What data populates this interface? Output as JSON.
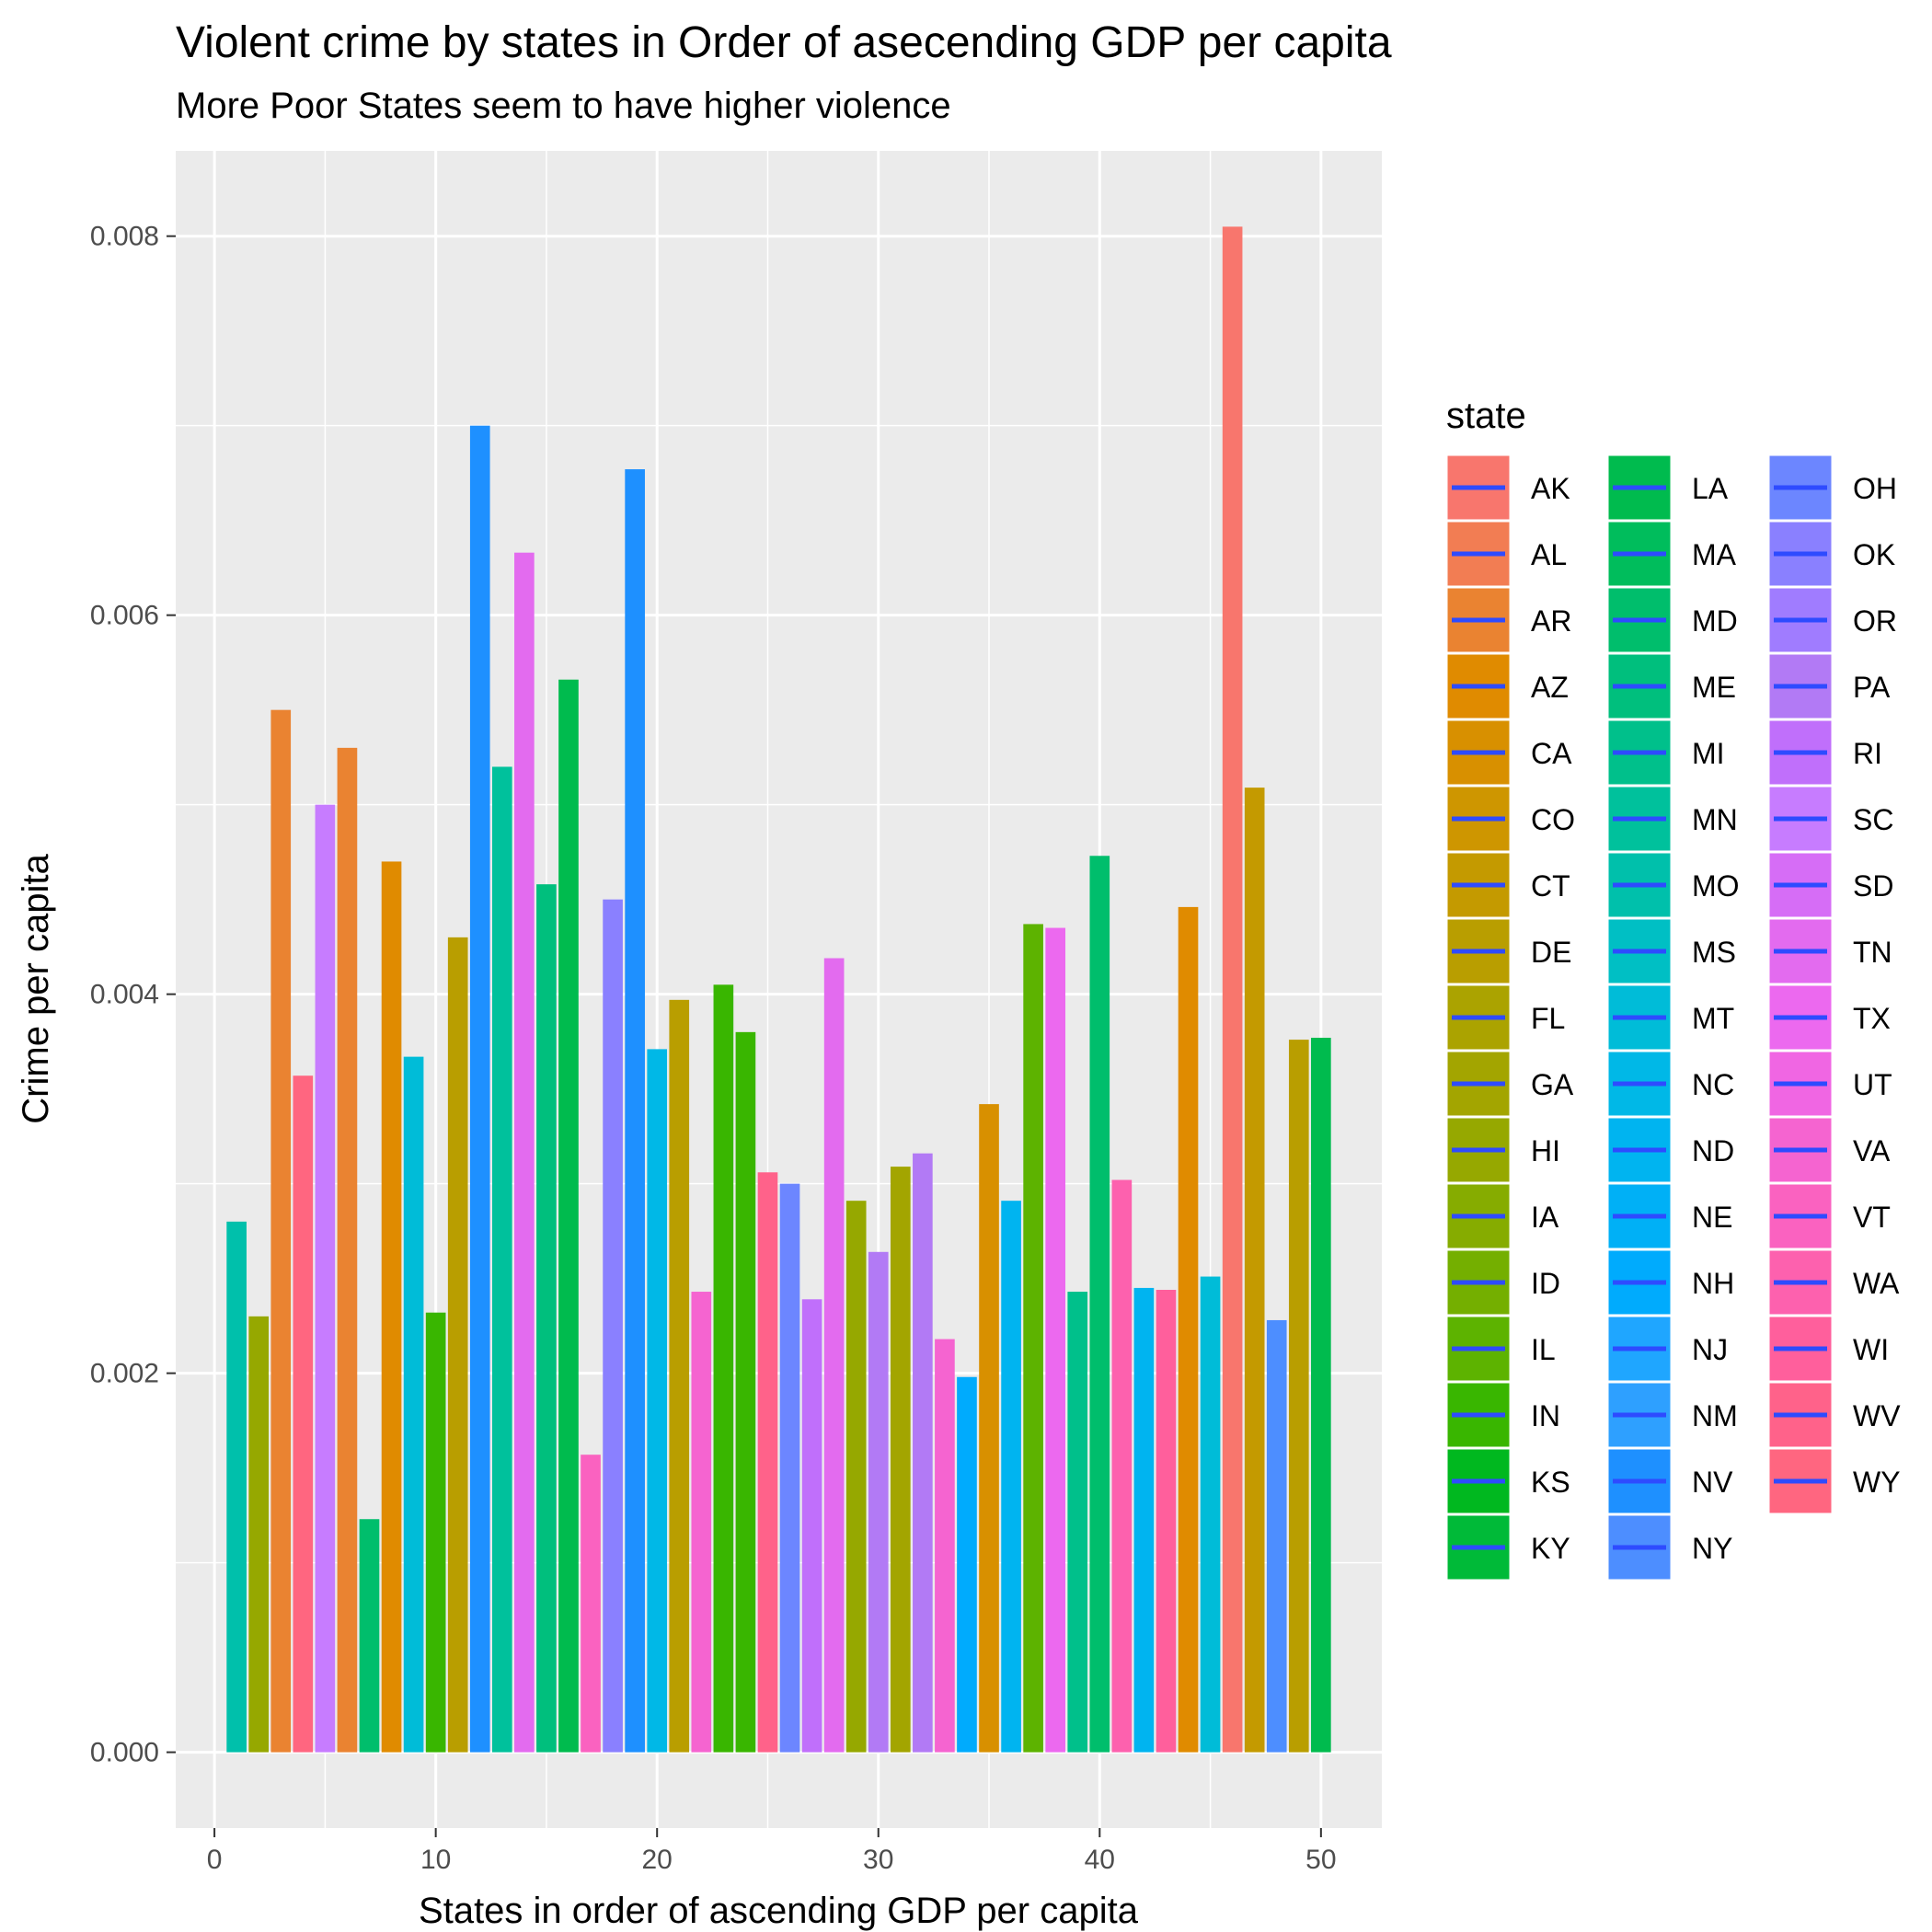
{
  "chart_data": {
    "type": "bar",
    "title": "Violent crime by states in Order of asecending GDP per capita",
    "subtitle": "More Poor States seem to have higher violence",
    "xlabel": "States in order of ascending GDP per capita",
    "ylabel": "Crime per capita",
    "xlim": [
      -1.75,
      52.75
    ],
    "ylim": [
      -0.0004,
      0.00845
    ],
    "x_ticks": [
      0,
      10,
      20,
      30,
      40,
      50
    ],
    "x_tick_labels": [
      "0",
      "10",
      "20",
      "30",
      "40",
      "50"
    ],
    "y_ticks": [
      0,
      0.002,
      0.004,
      0.006,
      0.008
    ],
    "y_tick_labels": [
      "0.000",
      "0.002",
      "0.004",
      "0.006",
      "0.008"
    ],
    "grid": true,
    "legend_title": "state",
    "legend_position": "right",
    "legend": [
      {
        "label": "AK",
        "color": "#F8766D"
      },
      {
        "label": "AL",
        "color": "#F27D53"
      },
      {
        "label": "AR",
        "color": "#EA8331"
      },
      {
        "label": "AZ",
        "color": "#E08B00"
      },
      {
        "label": "CA",
        "color": "#D89000"
      },
      {
        "label": "CO",
        "color": "#CE9600"
      },
      {
        "label": "CT",
        "color": "#C49A00"
      },
      {
        "label": "DE",
        "color": "#B99E00"
      },
      {
        "label": "FL",
        "color": "#ABA300"
      },
      {
        "label": "GA",
        "color": "#A3A500"
      },
      {
        "label": "HI",
        "color": "#96A800"
      },
      {
        "label": "IA",
        "color": "#86AC00"
      },
      {
        "label": "ID",
        "color": "#74AF00"
      },
      {
        "label": "IL",
        "color": "#5DB300"
      },
      {
        "label": "IN",
        "color": "#39B600"
      },
      {
        "label": "KS",
        "color": "#00B81F"
      },
      {
        "label": "KY",
        "color": "#00BA38"
      },
      {
        "label": "LA",
        "color": "#00BB4E"
      },
      {
        "label": "MA",
        "color": "#00BD5C"
      },
      {
        "label": "MD",
        "color": "#00BE6C"
      },
      {
        "label": "ME",
        "color": "#00BF7D"
      },
      {
        "label": "MI",
        "color": "#00C08B"
      },
      {
        "label": "MN",
        "color": "#00C19C"
      },
      {
        "label": "MO",
        "color": "#00C0AB"
      },
      {
        "label": "MS",
        "color": "#00BFC4"
      },
      {
        "label": "MT",
        "color": "#00BCD8"
      },
      {
        "label": "NC",
        "color": "#00B8E7"
      },
      {
        "label": "ND",
        "color": "#00B4F0"
      },
      {
        "label": "NE",
        "color": "#00B0F6"
      },
      {
        "label": "NH",
        "color": "#00ABFD"
      },
      {
        "label": "NJ",
        "color": "#1FA6FF"
      },
      {
        "label": "NM",
        "color": "#2EA0FF"
      },
      {
        "label": "NV",
        "color": "#1E90FF"
      },
      {
        "label": "NY",
        "color": "#4D8EFF"
      },
      {
        "label": "OH",
        "color": "#6C86FF"
      },
      {
        "label": "OK",
        "color": "#8A80FF"
      },
      {
        "label": "OR",
        "color": "#A07CFF"
      },
      {
        "label": "PA",
        "color": "#B27AF5"
      },
      {
        "label": "RI",
        "color": "#C06FFB"
      },
      {
        "label": "SC",
        "color": "#C77CFF"
      },
      {
        "label": "SD",
        "color": "#D66DF6"
      },
      {
        "label": "TN",
        "color": "#E36BEF"
      },
      {
        "label": "TX",
        "color": "#EC69EF"
      },
      {
        "label": "UT",
        "color": "#F066E3"
      },
      {
        "label": "VA",
        "color": "#F564D0"
      },
      {
        "label": "VT",
        "color": "#FA62C0"
      },
      {
        "label": "WA",
        "color": "#FD61AE"
      },
      {
        "label": "WI",
        "color": "#FF5F9C"
      },
      {
        "label": "WV",
        "color": "#FF628A"
      },
      {
        "label": "WY",
        "color": "#FF6680"
      }
    ],
    "legend_key_line_color": "#2E4BFF",
    "x": [
      1,
      2,
      3,
      4,
      5,
      6,
      7,
      8,
      9,
      10,
      11,
      12,
      13,
      14,
      15,
      16,
      17,
      18,
      19,
      20,
      21,
      22,
      23,
      24,
      25,
      26,
      27,
      28,
      29,
      30,
      31,
      32,
      33,
      34,
      35,
      36,
      37,
      38,
      39,
      40,
      41,
      42,
      43,
      44,
      45,
      46,
      47,
      48,
      49,
      50
    ],
    "values": [
      0.0028,
      0.0023,
      0.0055,
      0.00357,
      0.005,
      0.0053,
      0.00123,
      0.0047,
      0.00367,
      0.00232,
      0.0043,
      0.007,
      0.0052,
      0.00633,
      0.00458,
      0.00566,
      0.00157,
      0.0045,
      0.00677,
      0.00371,
      0.00397,
      0.00243,
      0.00405,
      0.0038,
      0.00306,
      0.003,
      0.00239,
      0.00419,
      0.00291,
      0.00264,
      0.00309,
      0.00316,
      0.00218,
      0.00198,
      0.00342,
      0.00291,
      0.00437,
      0.00435,
      0.00243,
      0.00473,
      0.00302,
      0.00245,
      0.00244,
      0.00446,
      0.00251,
      0.00805,
      0.00509,
      0.00228,
      0.00376,
      0.00377
    ],
    "bar_colors": [
      "#00C0AB",
      "#96A800",
      "#EA8331",
      "#FF6680",
      "#C77CFF",
      "#EA8331",
      "#00BE6C",
      "#E08B00",
      "#00BCD8",
      "#39B600",
      "#B99E00",
      "#1E90FF",
      "#00C19C",
      "#E36BEF",
      "#00BF7D",
      "#00BB4E",
      "#FA62C0",
      "#8A80FF",
      "#1E90FF",
      "#00B8E7",
      "#B99E00",
      "#F564D0",
      "#39B600",
      "#39B600",
      "#FF628A",
      "#6C86FF",
      "#C06FFB",
      "#E36BEF",
      "#96A800",
      "#B27AF5",
      "#A3A500",
      "#B27AF5",
      "#F564D0",
      "#00ABFD",
      "#D89000",
      "#00B4F0",
      "#5DB300",
      "#EC69EF",
      "#00C08B",
      "#00BE6C",
      "#FD61AE",
      "#00B4F0",
      "#FF5F9C",
      "#E08B00",
      "#00BCD8",
      "#F8766D",
      "#C49A00",
      "#4D8EFF",
      "#B99E00",
      "#00BB4E"
    ]
  }
}
